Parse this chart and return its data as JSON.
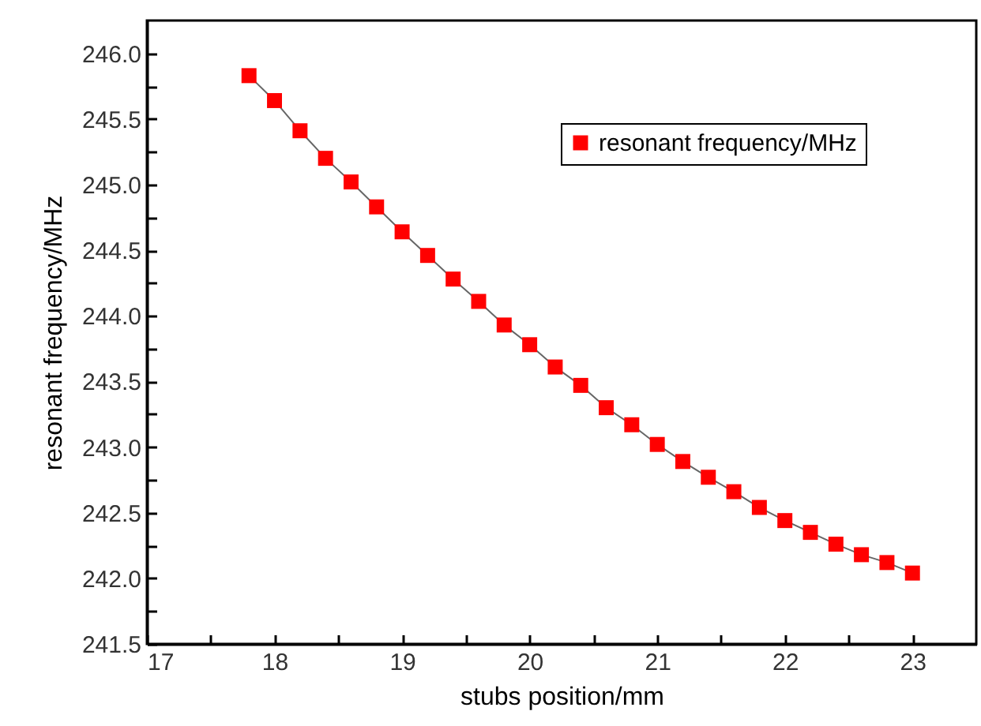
{
  "chart_data": {
    "type": "line",
    "xlabel": "stubs position/mm",
    "ylabel": "resonant frequency/MHz",
    "x": [
      17.8,
      18.0,
      18.2,
      18.4,
      18.6,
      18.8,
      19.0,
      19.2,
      19.4,
      19.6,
      19.8,
      20.0,
      20.2,
      20.4,
      20.6,
      20.8,
      21.0,
      21.2,
      21.4,
      21.6,
      21.8,
      22.0,
      22.2,
      22.4,
      22.6,
      22.8,
      23.0
    ],
    "series": [
      {
        "name": "resonant frequency/MHz",
        "color": "#ff0000",
        "values": [
          245.83,
          245.64,
          245.41,
          245.2,
          245.02,
          244.83,
          244.64,
          244.46,
          244.28,
          244.11,
          243.93,
          243.78,
          243.61,
          243.47,
          243.3,
          243.17,
          243.02,
          242.89,
          242.77,
          242.66,
          242.54,
          242.44,
          242.35,
          242.26,
          242.18,
          242.12,
          242.04
        ]
      }
    ],
    "xlim": [
      17,
      23.5
    ],
    "xticks": [
      17,
      {
        "value": 17.5,
        "label": null
      },
      18,
      {
        "value": 18.5,
        "label": null
      },
      19,
      {
        "value": 19.5,
        "label": null
      },
      20,
      {
        "value": 20.5,
        "label": null
      },
      21,
      {
        "value": 21.5,
        "label": null
      },
      22,
      {
        "value": 22.5,
        "label": null
      },
      23
    ],
    "ylim": [
      241.5,
      246.25
    ],
    "yticks": [
      {
        "value": 241.5,
        "label": "241.5"
      },
      {
        "value": 241.75,
        "label": null
      },
      {
        "value": 242,
        "label": "242.0"
      },
      {
        "value": 242.25,
        "label": null
      },
      {
        "value": 242.5,
        "label": "242.5"
      },
      {
        "value": 242.75,
        "label": null
      },
      {
        "value": 243,
        "label": "243.0"
      },
      {
        "value": 243.25,
        "label": null
      },
      {
        "value": 243.5,
        "label": "243.5"
      },
      {
        "value": 243.75,
        "label": null
      },
      {
        "value": 244,
        "label": "244.0"
      },
      {
        "value": 244.25,
        "label": null
      },
      {
        "value": 244.5,
        "label": "244.5"
      },
      {
        "value": 244.75,
        "label": null
      },
      {
        "value": 245,
        "label": "245.0"
      },
      {
        "value": 245.25,
        "label": null
      },
      {
        "value": 245.5,
        "label": "245.5"
      },
      {
        "value": 245.75,
        "label": null
      },
      {
        "value": 246,
        "label": "246.0"
      }
    ],
    "grid": false,
    "legend": "top right",
    "marker": "square",
    "line_style": "solid"
  }
}
